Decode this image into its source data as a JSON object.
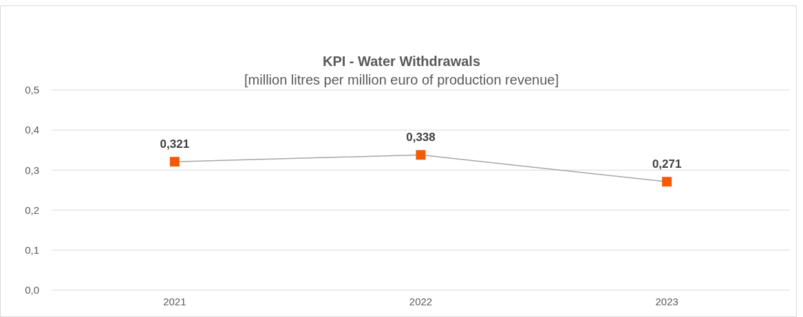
{
  "chart_data": {
    "type": "line",
    "title": "KPI - Water Withdrawals",
    "subtitle": "[million litres per million euro of production revenue]",
    "categories": [
      "2021",
      "2022",
      "2023"
    ],
    "series": [
      {
        "color": "#a6a6a6",
        "colors": [
          "#f25a05",
          "#f25a05",
          "#f25a05"
        ],
        "values": [
          0.321,
          0.338,
          0.271
        ],
        "value_labels": [
          "0,321",
          "0,338",
          "0,271"
        ]
      }
    ],
    "ylim": [
      0,
      0.5
    ],
    "yticks": [
      {
        "value": 0,
        "label": "0,0"
      },
      {
        "value": 0.1,
        "label": "0,1"
      },
      {
        "value": 0.2,
        "label": "0,2"
      },
      {
        "value": 0.3,
        "label": "0,3"
      },
      {
        "value": 0.4,
        "label": "0,4"
      },
      {
        "value": 0.5,
        "label": "0,5"
      }
    ],
    "grid": "y",
    "marker": "square",
    "line_style": "solid"
  }
}
